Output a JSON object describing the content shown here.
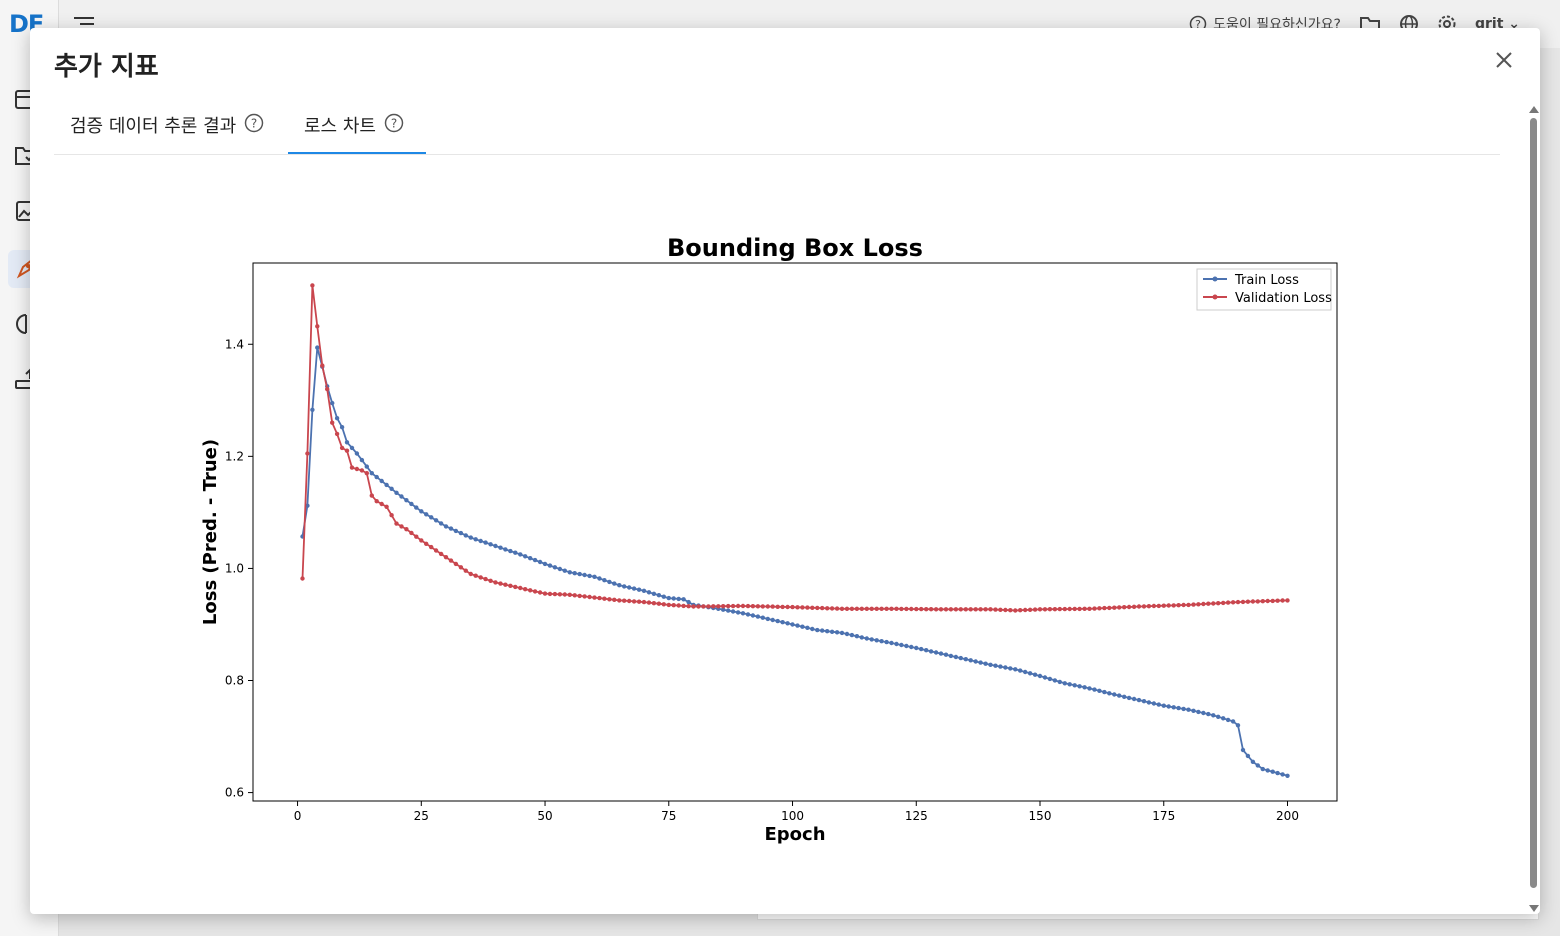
{
  "app": {
    "logo": "DE",
    "header": {
      "help_text": "도움이 필요하신가요?",
      "user_name": "grit"
    }
  },
  "modal": {
    "title": "추가 지표",
    "tabs": [
      {
        "label": "검증 데이터 추론 결과",
        "active": false
      },
      {
        "label": "로스 차트",
        "active": true
      }
    ]
  },
  "colors": {
    "train": "#4c72b0",
    "validation": "#c9464e",
    "tab_active": "#1e88e5"
  },
  "chart_data": {
    "type": "line",
    "title": "Bounding Box Loss",
    "xlabel": "Epoch",
    "ylabel": "Loss (Pred. - True)",
    "xlim": [
      -9,
      210
    ],
    "ylim": [
      0.585,
      1.545
    ],
    "xticks": [
      0,
      25,
      50,
      75,
      100,
      125,
      150,
      175,
      200
    ],
    "yticks": [
      0.6,
      0.8,
      1.0,
      1.2,
      1.4
    ],
    "legend_position": "top-right",
    "series": [
      {
        "name": "Train Loss",
        "keypoints": [
          [
            1,
            1.057
          ],
          [
            2,
            1.112
          ],
          [
            3,
            1.283
          ],
          [
            4,
            1.394
          ],
          [
            5,
            1.36
          ],
          [
            6,
            1.325
          ],
          [
            7,
            1.295
          ],
          [
            8,
            1.268
          ],
          [
            9,
            1.252
          ],
          [
            10,
            1.225
          ],
          [
            12,
            1.205
          ],
          [
            15,
            1.17
          ],
          [
            20,
            1.135
          ],
          [
            25,
            1.102
          ],
          [
            30,
            1.075
          ],
          [
            35,
            1.055
          ],
          [
            40,
            1.04
          ],
          [
            45,
            1.025
          ],
          [
            50,
            1.008
          ],
          [
            55,
            0.993
          ],
          [
            60,
            0.985
          ],
          [
            65,
            0.97
          ],
          [
            70,
            0.96
          ],
          [
            75,
            0.947
          ],
          [
            78,
            0.945
          ],
          [
            80,
            0.935
          ],
          [
            85,
            0.928
          ],
          [
            90,
            0.92
          ],
          [
            95,
            0.91
          ],
          [
            100,
            0.9
          ],
          [
            105,
            0.89
          ],
          [
            110,
            0.885
          ],
          [
            115,
            0.875
          ],
          [
            120,
            0.867
          ],
          [
            125,
            0.858
          ],
          [
            130,
            0.848
          ],
          [
            135,
            0.838
          ],
          [
            140,
            0.828
          ],
          [
            145,
            0.82
          ],
          [
            150,
            0.808
          ],
          [
            155,
            0.795
          ],
          [
            160,
            0.786
          ],
          [
            165,
            0.775
          ],
          [
            170,
            0.765
          ],
          [
            175,
            0.755
          ],
          [
            180,
            0.748
          ],
          [
            185,
            0.738
          ],
          [
            189,
            0.727
          ],
          [
            190,
            0.72
          ],
          [
            191,
            0.676
          ],
          [
            193,
            0.655
          ],
          [
            195,
            0.642
          ],
          [
            200,
            0.63
          ]
        ]
      },
      {
        "name": "Validation Loss",
        "keypoints": [
          [
            1,
            0.982
          ],
          [
            2,
            1.205
          ],
          [
            3,
            1.505
          ],
          [
            4,
            1.432
          ],
          [
            5,
            1.362
          ],
          [
            6,
            1.32
          ],
          [
            7,
            1.26
          ],
          [
            8,
            1.24
          ],
          [
            9,
            1.215
          ],
          [
            10,
            1.21
          ],
          [
            11,
            1.18
          ],
          [
            13,
            1.175
          ],
          [
            14,
            1.17
          ],
          [
            15,
            1.13
          ],
          [
            16,
            1.12
          ],
          [
            18,
            1.11
          ],
          [
            20,
            1.08
          ],
          [
            22,
            1.07
          ],
          [
            25,
            1.05
          ],
          [
            30,
            1.02
          ],
          [
            35,
            0.99
          ],
          [
            40,
            0.975
          ],
          [
            45,
            0.965
          ],
          [
            50,
            0.955
          ],
          [
            55,
            0.953
          ],
          [
            60,
            0.948
          ],
          [
            65,
            0.943
          ],
          [
            70,
            0.94
          ],
          [
            75,
            0.935
          ],
          [
            80,
            0.932
          ],
          [
            90,
            0.933
          ],
          [
            100,
            0.931
          ],
          [
            110,
            0.928
          ],
          [
            120,
            0.928
          ],
          [
            130,
            0.927
          ],
          [
            140,
            0.927
          ],
          [
            145,
            0.925
          ],
          [
            150,
            0.927
          ],
          [
            160,
            0.928
          ],
          [
            170,
            0.932
          ],
          [
            180,
            0.935
          ],
          [
            190,
            0.94
          ],
          [
            200,
            0.943
          ]
        ]
      }
    ]
  }
}
